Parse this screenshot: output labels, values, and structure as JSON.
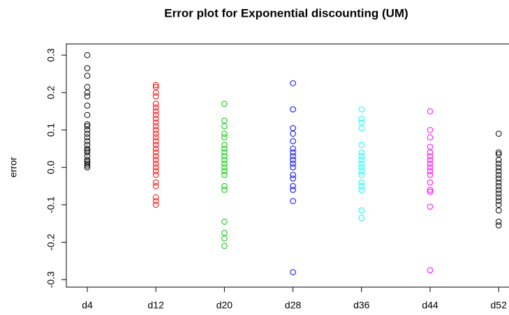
{
  "chart_data": {
    "type": "strip",
    "title": "Error plot for Exponential discounting (UM)",
    "y_label": "error",
    "categories": [
      "d4",
      "d12",
      "d20",
      "d28",
      "d36",
      "d44",
      "d52"
    ],
    "colors": [
      "#000000",
      "#ff0000",
      "#00cd00",
      "#0000ff",
      "#00ffff",
      "#ff00ff",
      "#000000"
    ],
    "values": [
      [
        0.3,
        0.265,
        0.245,
        0.215,
        0.2,
        0.19,
        0.165,
        0.14,
        0.115,
        0.11,
        0.1,
        0.09,
        0.08,
        0.07,
        0.06,
        0.05,
        0.045,
        0.04,
        0.03,
        0.02,
        0.015,
        0.01,
        0.005,
        0.0
      ],
      [
        0.22,
        0.215,
        0.2,
        0.19,
        0.17,
        0.16,
        0.15,
        0.14,
        0.13,
        0.12,
        0.11,
        0.1,
        0.09,
        0.08,
        0.07,
        0.06,
        0.05,
        0.04,
        0.03,
        0.02,
        0.01,
        0.0,
        -0.01,
        -0.02,
        -0.04,
        -0.05,
        -0.08,
        -0.09,
        -0.1
      ],
      [
        0.17,
        0.125,
        0.11,
        0.09,
        0.08,
        0.06,
        0.05,
        0.04,
        0.03,
        0.02,
        0.01,
        0.0,
        -0.01,
        -0.02,
        -0.05,
        -0.06,
        -0.145,
        -0.175,
        -0.19,
        -0.21
      ],
      [
        0.225,
        0.155,
        0.105,
        0.09,
        0.07,
        0.05,
        0.04,
        0.03,
        0.02,
        0.01,
        0.0,
        -0.02,
        -0.03,
        -0.05,
        -0.06,
        -0.09,
        -0.28
      ],
      [
        0.155,
        0.13,
        0.12,
        0.105,
        0.06,
        0.04,
        0.03,
        0.02,
        0.01,
        0.0,
        -0.01,
        -0.02,
        -0.04,
        -0.05,
        -0.06,
        -0.115,
        -0.135
      ],
      [
        0.15,
        0.1,
        0.08,
        0.055,
        0.04,
        0.03,
        0.02,
        0.01,
        0.0,
        -0.01,
        -0.02,
        -0.04,
        -0.06,
        -0.065,
        -0.105,
        -0.275
      ],
      [
        0.09,
        0.04,
        0.035,
        0.02,
        0.01,
        0.0,
        -0.01,
        -0.02,
        -0.03,
        -0.04,
        -0.05,
        -0.06,
        -0.07,
        -0.08,
        -0.09,
        -0.1,
        -0.115,
        -0.145,
        -0.155
      ]
    ],
    "ylim": [
      -0.32,
      0.33
    ],
    "yticks": [
      -0.3,
      -0.2,
      -0.1,
      {
        "value": 0,
        "label": "0.0"
      },
      0.1,
      0.2,
      0.3
    ]
  }
}
